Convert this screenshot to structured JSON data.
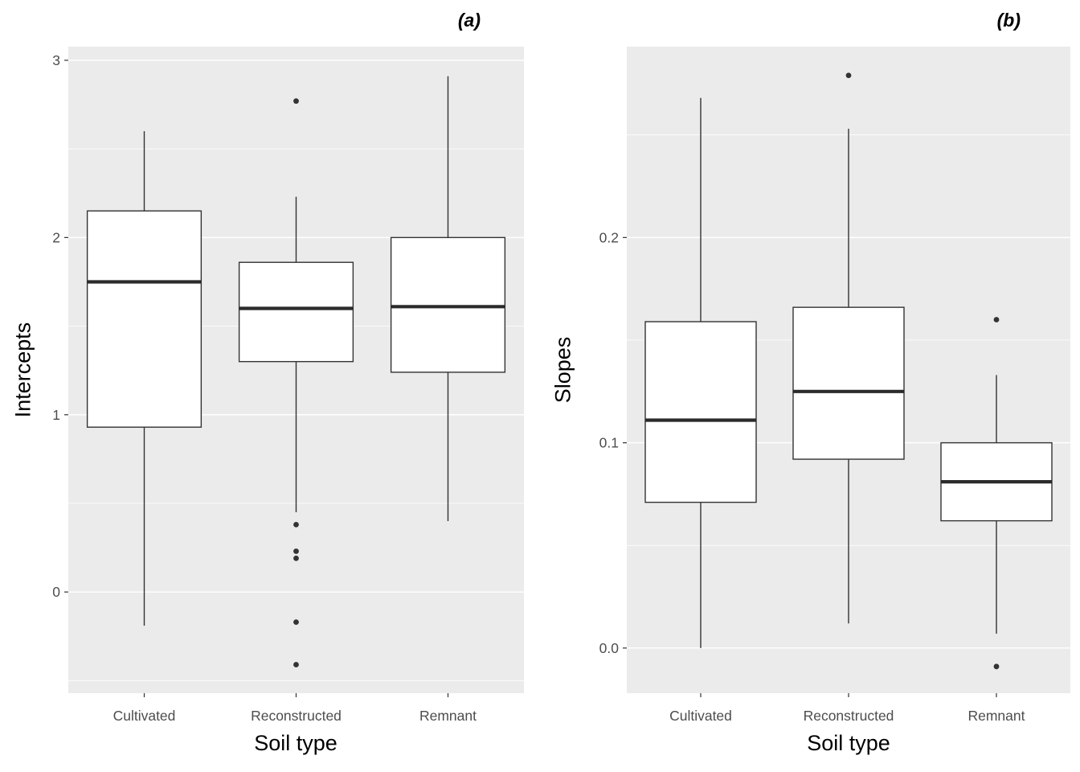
{
  "style": {
    "background": "#FFFFFF",
    "panel_background": "#EBEBEB",
    "grid_major_color": "#FFFFFF",
    "grid_minor_color": "#FFFFFF",
    "box_fill": "#FFFFFF",
    "box_stroke": "#333333",
    "median_stroke": "#2B2B2B",
    "outlier_color": "#333333",
    "axis_tick_color": "#333333",
    "tick_label_color": "#4D4D4D",
    "axis_title_color": "#000000"
  },
  "chart_data": [
    {
      "type": "boxplot",
      "panel_label": "(a)",
      "xlabel": "Soil type",
      "ylabel": "Intercepts",
      "categories": [
        "Cultivated",
        "Reconstructed",
        "Remnant"
      ],
      "ylim": [
        -0.571,
        3.077
      ],
      "yticks": [
        0,
        1,
        2,
        3
      ],
      "ytick_labels": [
        "0",
        "1",
        "2",
        "3"
      ],
      "yminor": [
        -0.5,
        0.5,
        1.5,
        2.5
      ],
      "grid": true,
      "legend": "none",
      "boxes": [
        {
          "category": "Cultivated",
          "whisker_low": -0.19,
          "q1": 0.93,
          "median": 1.75,
          "q3": 2.15,
          "whisker_high": 2.6,
          "outliers": []
        },
        {
          "category": "Reconstructed",
          "whisker_low": 0.45,
          "q1": 1.3,
          "median": 1.6,
          "q3": 1.86,
          "whisker_high": 2.23,
          "outliers": [
            2.77,
            0.38,
            0.23,
            0.19,
            -0.17,
            -0.41
          ]
        },
        {
          "category": "Remnant",
          "whisker_low": 0.4,
          "q1": 1.24,
          "median": 1.61,
          "q3": 2.0,
          "whisker_high": 2.91,
          "outliers": []
        }
      ]
    },
    {
      "type": "boxplot",
      "panel_label": "(b)",
      "xlabel": "Soil type",
      "ylabel": "Slopes",
      "categories": [
        "Cultivated",
        "Reconstructed",
        "Remnant"
      ],
      "ylim": [
        -0.022,
        0.293
      ],
      "yticks": [
        0.0,
        0.1,
        0.2
      ],
      "ytick_labels": [
        "0.0",
        "0.1",
        "0.2"
      ],
      "yminor": [
        0.05,
        0.15,
        0.25
      ],
      "grid": true,
      "legend": "none",
      "boxes": [
        {
          "category": "Cultivated",
          "whisker_low": 0.0,
          "q1": 0.071,
          "median": 0.111,
          "q3": 0.159,
          "whisker_high": 0.268,
          "outliers": []
        },
        {
          "category": "Reconstructed",
          "whisker_low": 0.012,
          "q1": 0.092,
          "median": 0.125,
          "q3": 0.166,
          "whisker_high": 0.253,
          "outliers": [
            0.279
          ]
        },
        {
          "category": "Remnant",
          "whisker_low": 0.007,
          "q1": 0.062,
          "median": 0.081,
          "q3": 0.1,
          "whisker_high": 0.133,
          "outliers": [
            0.16,
            -0.009
          ]
        }
      ]
    }
  ]
}
